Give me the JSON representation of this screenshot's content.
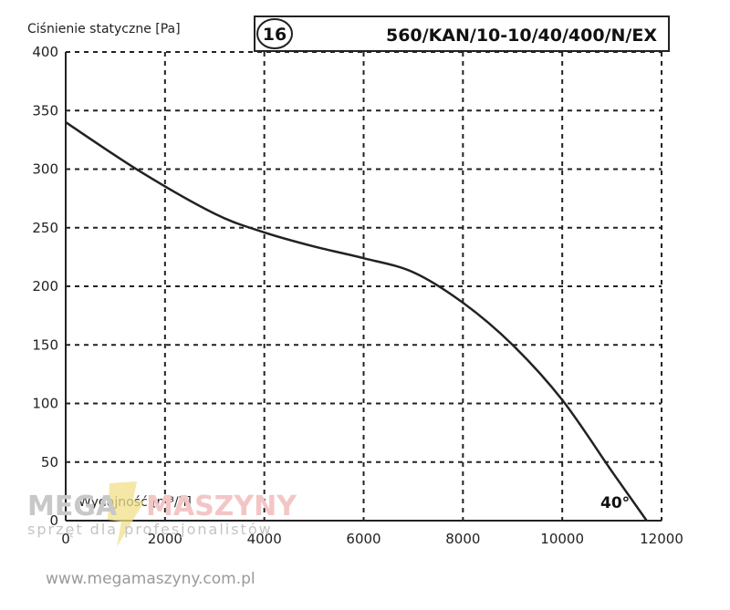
{
  "chart_data": {
    "type": "line",
    "title": "560/KAN/10-10/40/400/N/EX",
    "badge": "16",
    "ylabel": "Ciśnienie statyczne [Pa]",
    "xlabel": "Wydajność [m³/h]",
    "annotation": "40°",
    "xlim": [
      0,
      12000
    ],
    "ylim": [
      0,
      400
    ],
    "x_ticks": [
      "0",
      "2000",
      "4000",
      "6000",
      "8000",
      "10000",
      "12000"
    ],
    "y_ticks": [
      "0",
      "50",
      "100",
      "150",
      "200",
      "250",
      "300",
      "350",
      "400"
    ],
    "grid": true,
    "series": [
      {
        "x": [
          0,
          1500,
          3000,
          4000,
          5000,
          6000,
          7000,
          8000,
          9000,
          10000,
          11000,
          11700
        ],
        "y": [
          340,
          298,
          262,
          246,
          234,
          224,
          212,
          186,
          150,
          103,
          42,
          0
        ]
      }
    ],
    "colors": {
      "line": "#222222",
      "grid": "#222222"
    }
  },
  "watermark": {
    "mega": "MEGA",
    "maszyny": "MASZYNY",
    "tagline": "sprzęt dla profesjonalistów",
    "url": "www.megamaszyny.com.pl"
  }
}
